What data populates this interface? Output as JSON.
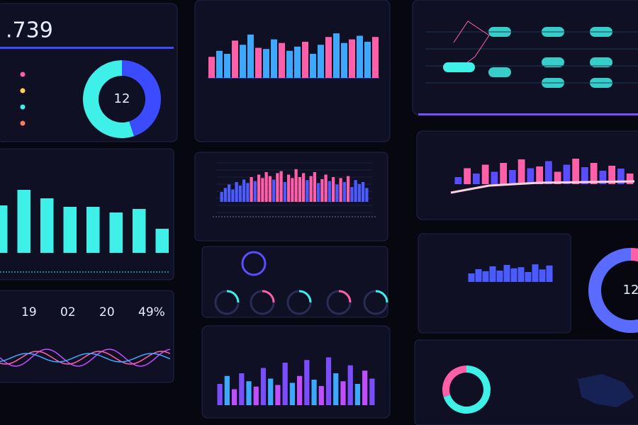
{
  "kpi": {
    "value": ".739"
  },
  "donut": {
    "center": "12",
    "values": [
      45,
      55
    ],
    "colors": [
      "#3b4bff",
      "#3ef0e8"
    ]
  },
  "stats": [
    "19",
    "02",
    "20",
    "49%"
  ],
  "gauge_right": {
    "center": "12",
    "values": [
      40,
      60
    ],
    "colors": [
      "#ff5fa8",
      "#5a6bff"
    ]
  },
  "donut_small": {
    "values": [
      70,
      30
    ],
    "colors": [
      "#3ef0e8",
      "#ff5fa8"
    ]
  },
  "top_bars": [
    35,
    45,
    40,
    62,
    55,
    72,
    50,
    48,
    64,
    58,
    45,
    52,
    60,
    40,
    55,
    68,
    74,
    58,
    64,
    70,
    60,
    68
  ],
  "cyan_bars": [
    67,
    89,
    77,
    65,
    65,
    57,
    62,
    34
  ],
  "mid_bars": [
    20,
    28,
    35,
    25,
    40,
    33,
    45,
    38,
    50,
    42,
    55,
    48,
    60,
    52,
    45,
    58,
    62,
    40,
    55,
    48,
    66,
    50,
    58,
    44,
    52,
    60,
    38,
    46,
    55,
    42,
    50,
    35,
    48,
    40,
    52,
    30,
    44,
    36,
    40,
    28
  ],
  "right_bars": [
    20,
    45,
    30,
    55,
    35,
    60,
    40,
    70,
    45,
    50,
    65,
    35,
    55,
    72,
    48,
    60,
    38,
    52,
    44,
    30
  ],
  "bottom_bars": [
    40,
    55,
    30,
    60,
    45,
    35,
    70,
    50,
    38,
    80,
    42,
    55,
    85,
    48,
    36,
    90,
    60,
    45,
    75,
    40,
    65,
    50
  ],
  "mini_bars": [
    30,
    45,
    38,
    55,
    40,
    60,
    48,
    52,
    35,
    62,
    44,
    58
  ]
}
